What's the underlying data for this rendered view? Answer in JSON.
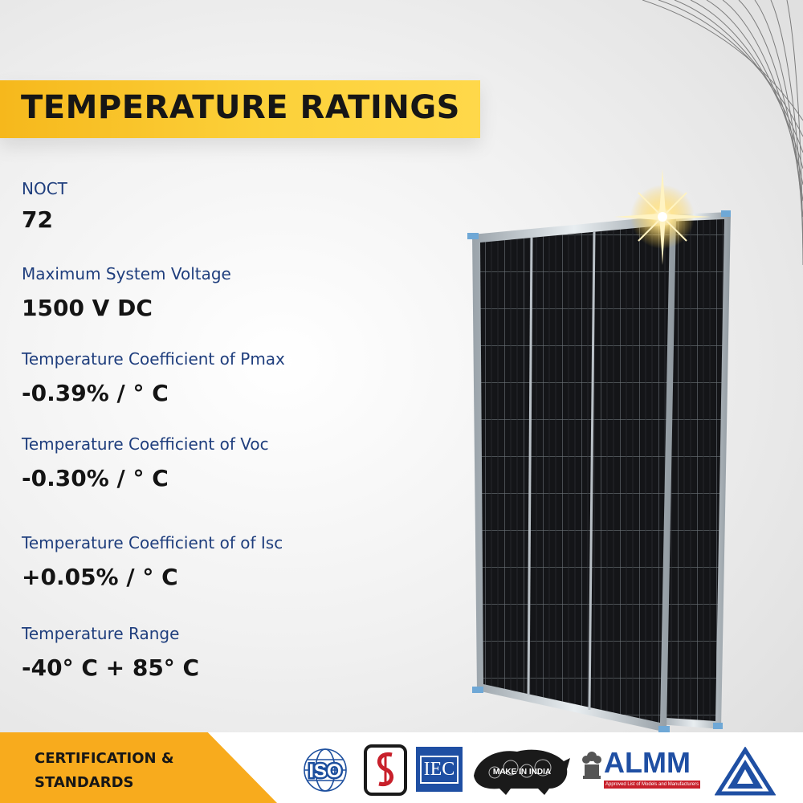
{
  "title": "TEMPERATURE RATINGS",
  "specs": [
    {
      "label": "NOCT",
      "value": "72"
    },
    {
      "label": "Maximum System Voltage",
      "value": "1500 V DC"
    },
    {
      "label": "Temperature Coefficient of Pmax",
      "value": "-0.39% / ° C"
    },
    {
      "label": "Temperature Coefficient of Voc",
      "value": "-0.30% / ° C"
    },
    {
      "label": "Temperature Coefficient of of Isc",
      "value": "+0.05% / ° C"
    },
    {
      "label": "Temperature Range",
      "value": "-40° C + 85° C"
    }
  ],
  "footer": {
    "line1": "CERTIFICATION &",
    "line2": "STANDARDS",
    "badges": {
      "iso": "ISO",
      "iec": "IEC",
      "make_in_india": "MAKE IN INDIA",
      "almm": "ALMM",
      "almm_caption": "Approved List of Models and Manufacturers"
    }
  },
  "colors": {
    "accent": "#fcd13a",
    "footer_accent": "#f8ab1d",
    "label": "#1f3e7d",
    "iso_blue": "#1d4f9e",
    "iec_blue": "#1f4fa3",
    "red": "#c8202b"
  }
}
